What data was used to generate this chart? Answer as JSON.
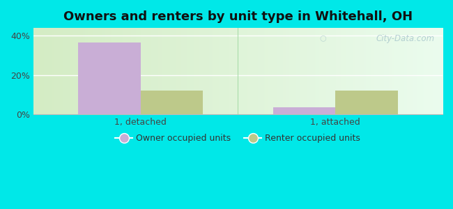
{
  "title": "Owners and renters by unit type in Whitehall, OH",
  "categories": [
    "1, detached",
    "1, attached"
  ],
  "owner_values": [
    36.5,
    3.5
  ],
  "renter_values": [
    12.0,
    12.0
  ],
  "owner_color": "#c9aed6",
  "renter_color": "#bdc98a",
  "ylim": [
    0,
    44
  ],
  "yticks": [
    0,
    20,
    40
  ],
  "yticklabels": [
    "0%",
    "20%",
    "40%"
  ],
  "background_color": "#00e8e8",
  "bar_width": 0.32,
  "legend_labels": [
    "Owner occupied units",
    "Renter occupied units"
  ],
  "watermark": "City-Data.com",
  "title_fontsize": 13,
  "tick_fontsize": 9,
  "legend_fontsize": 9,
  "gradient_left": "#d4ecc4",
  "gradient_right": "#eefaf0"
}
